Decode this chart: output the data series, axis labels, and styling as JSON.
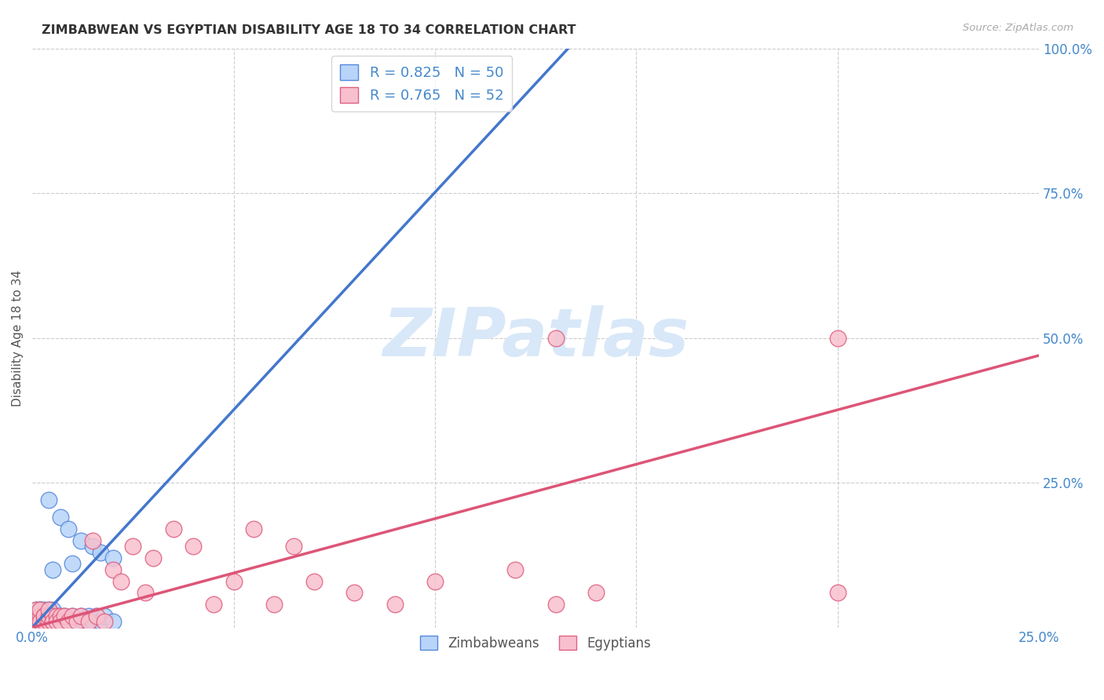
{
  "title": "ZIMBABWEAN VS EGYPTIAN DISABILITY AGE 18 TO 34 CORRELATION CHART",
  "source": "Source: ZipAtlas.com",
  "ylabel": "Disability Age 18 to 34",
  "xlim": [
    0.0,
    0.25
  ],
  "ylim": [
    0.0,
    1.0
  ],
  "blue_R": "0.825",
  "blue_N": "50",
  "pink_R": "0.765",
  "pink_N": "52",
  "blue_face": "#b8d4f8",
  "blue_edge": "#5588dd",
  "pink_face": "#f8c0ce",
  "pink_edge": "#e06080",
  "blue_line_color": "#4477cc",
  "pink_line_color": "#dd5577",
  "watermark_color": "#d8e8f8",
  "grid_color": "#cccccc",
  "tick_color": "#4488cc",
  "background": "#ffffff",
  "legend_label_blue": "Zimbabweans",
  "legend_label_pink": "Egyptians",
  "blue_line_x": [
    0.0,
    0.133
  ],
  "blue_line_y": [
    0.0,
    1.0
  ],
  "pink_line_x": [
    0.0,
    0.25
  ],
  "pink_line_y": [
    0.0,
    0.47
  ],
  "blue_scatter_x": [
    0.001,
    0.001,
    0.001,
    0.001,
    0.001,
    0.002,
    0.002,
    0.002,
    0.002,
    0.002,
    0.002,
    0.003,
    0.003,
    0.003,
    0.003,
    0.003,
    0.004,
    0.004,
    0.004,
    0.005,
    0.005,
    0.005,
    0.006,
    0.006,
    0.007,
    0.007,
    0.008,
    0.008,
    0.009,
    0.01,
    0.01,
    0.011,
    0.012,
    0.013,
    0.014,
    0.015,
    0.016,
    0.017,
    0.018,
    0.02,
    0.004,
    0.007,
    0.009,
    0.012,
    0.015,
    0.017,
    0.02,
    0.01,
    0.005,
    0.002
  ],
  "blue_scatter_y": [
    0.01,
    0.02,
    0.03,
    0.01,
    0.02,
    0.01,
    0.02,
    0.03,
    0.01,
    0.02,
    0.03,
    0.01,
    0.02,
    0.03,
    0.01,
    0.02,
    0.01,
    0.02,
    0.03,
    0.01,
    0.02,
    0.03,
    0.01,
    0.02,
    0.01,
    0.02,
    0.01,
    0.02,
    0.01,
    0.01,
    0.02,
    0.01,
    0.02,
    0.01,
    0.02,
    0.01,
    0.02,
    0.01,
    0.02,
    0.01,
    0.22,
    0.19,
    0.17,
    0.15,
    0.14,
    0.13,
    0.12,
    0.11,
    0.1,
    -0.01
  ],
  "pink_scatter_x": [
    0.001,
    0.001,
    0.001,
    0.001,
    0.002,
    0.002,
    0.002,
    0.002,
    0.003,
    0.003,
    0.003,
    0.004,
    0.004,
    0.004,
    0.005,
    0.005,
    0.005,
    0.006,
    0.006,
    0.007,
    0.007,
    0.008,
    0.009,
    0.01,
    0.011,
    0.012,
    0.014,
    0.015,
    0.016,
    0.018,
    0.02,
    0.022,
    0.025,
    0.028,
    0.03,
    0.035,
    0.04,
    0.045,
    0.05,
    0.055,
    0.06,
    0.065,
    0.07,
    0.08,
    0.09,
    0.1,
    0.12,
    0.14,
    0.13,
    0.2,
    0.13,
    0.2
  ],
  "pink_scatter_y": [
    0.01,
    0.02,
    0.01,
    0.03,
    0.01,
    0.02,
    0.03,
    0.01,
    0.02,
    0.01,
    0.02,
    0.01,
    0.02,
    0.03,
    0.01,
    0.02,
    0.01,
    0.02,
    0.01,
    0.02,
    0.01,
    0.02,
    0.01,
    0.02,
    0.01,
    0.02,
    0.01,
    0.15,
    0.02,
    0.01,
    0.1,
    0.08,
    0.14,
    0.06,
    0.12,
    0.17,
    0.14,
    0.04,
    0.08,
    0.17,
    0.04,
    0.14,
    0.08,
    0.06,
    0.04,
    0.08,
    0.1,
    0.06,
    0.04,
    0.06,
    0.5,
    0.5
  ]
}
